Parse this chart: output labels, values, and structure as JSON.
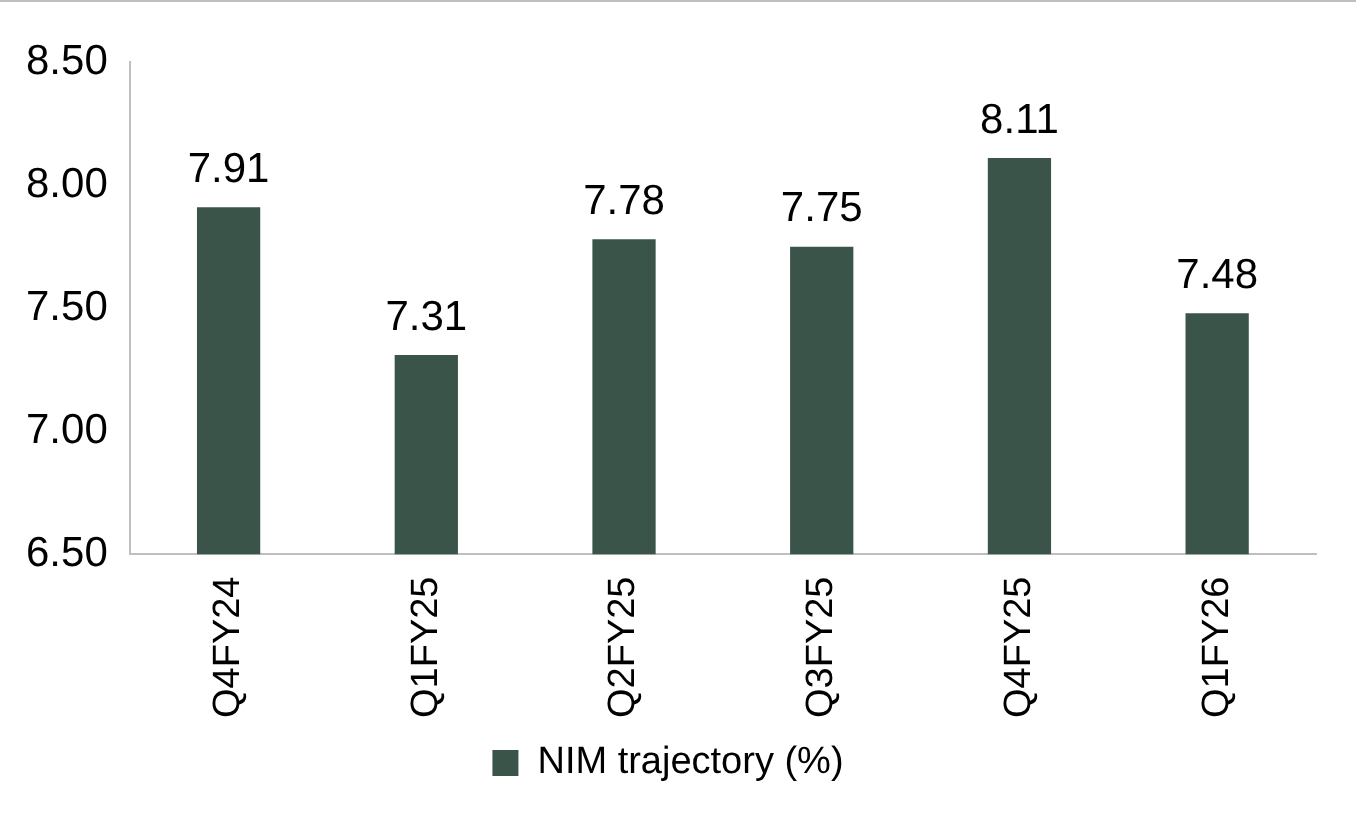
{
  "chart_data": {
    "type": "bar",
    "categories": [
      "Q4FY24",
      "Q1FY25",
      "Q2FY25",
      "Q3FY25",
      "Q4FY25",
      "Q1FY26"
    ],
    "series": [
      {
        "name": "NIM trajectory (%)",
        "color": "#3b5449",
        "values": [
          7.91,
          7.31,
          7.78,
          7.75,
          8.11,
          7.48
        ]
      }
    ],
    "ylim": [
      6.5,
      8.5
    ],
    "yticks": [
      {
        "value": 6.5,
        "label": "6.50"
      },
      {
        "value": 7,
        "label": "7.00"
      },
      {
        "value": 7.5,
        "label": "7.50"
      },
      {
        "value": 8,
        "label": "8.00"
      },
      {
        "value": 8.5,
        "label": "8.50"
      }
    ],
    "grid": false,
    "legend": "bottom",
    "data_labels": true
  }
}
